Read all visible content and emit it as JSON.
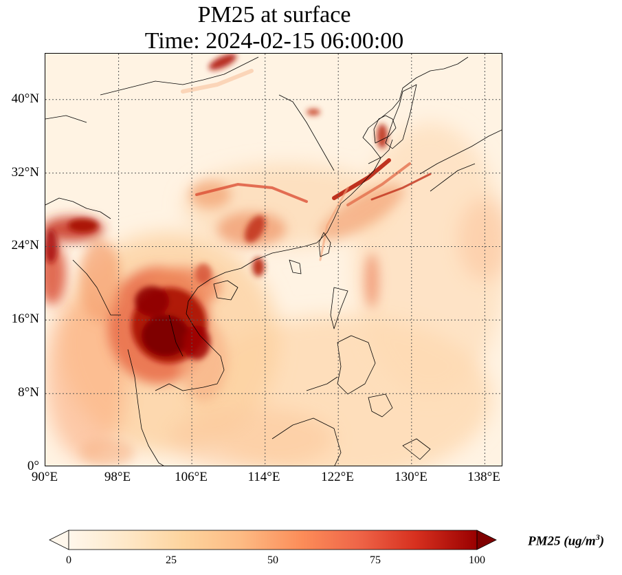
{
  "title": {
    "line1": "PM25 at surface",
    "line2": "Time: 2024-02-15 06:00:00"
  },
  "map": {
    "extent_lon": [
      90,
      140
    ],
    "extent_lat": [
      0,
      45
    ],
    "lat_labels": [
      "0°",
      "8°N",
      "16°N",
      "24°N",
      "32°N",
      "40°N"
    ],
    "lon_labels": [
      "90°E",
      "98°E",
      "106°E",
      "114°E",
      "122°E",
      "130°E",
      "138°E"
    ],
    "gridlines": "dotted",
    "colormap": "OrRd",
    "colors": {
      "low": "#fff7ec",
      "mid": "#fdbb84",
      "high": "#7f0000",
      "coast": "#000000"
    }
  },
  "colorbar": {
    "ticks": [
      "0",
      "25",
      "50",
      "75",
      "100"
    ],
    "range": [
      0,
      100
    ],
    "extend": "both",
    "label_main": "PM25 (ug/m",
    "label_sup": "3",
    "label_end": ")"
  }
}
